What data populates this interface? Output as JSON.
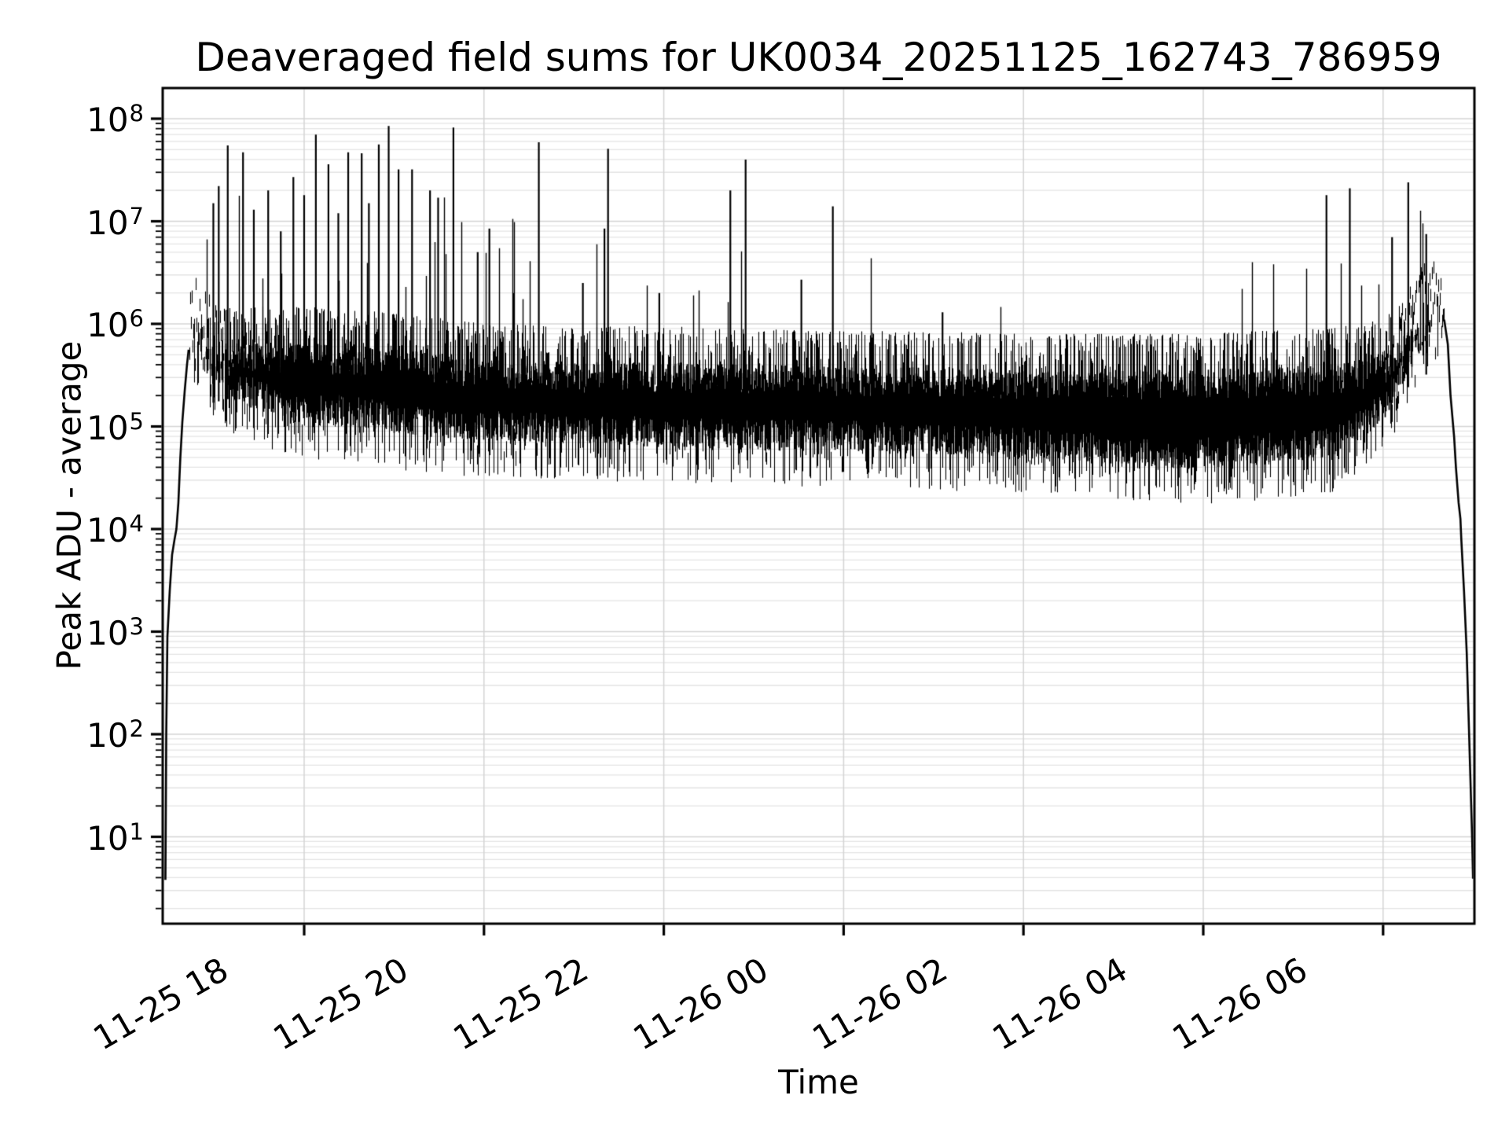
{
  "figure": {
    "title": "Deaveraged field sums for UK0034_20251125_162743_786959",
    "xlabel": "Time",
    "ylabel": "Peak ADU - average"
  },
  "style": {
    "background": "#ffffff",
    "text_color": "#000000",
    "line_color": "#000000",
    "spine_color": "#000000",
    "grid_major_color": "#d4d4d4",
    "grid_minor_color": "#e4e4e4"
  },
  "chart_data": {
    "type": "line",
    "title": "Deaveraged field sums for UK0034_20251125_162743_786959",
    "xlabel": "Time",
    "ylabel": "Peak ADU - average",
    "grid": "both major and minor, light gray, log-y minors shown",
    "legend": "none",
    "x_axis": {
      "scale": "time",
      "tick_labels": [
        "11-25 18",
        "11-25 20",
        "11-25 22",
        "11-26 00",
        "11-26 02",
        "11-26 04",
        "11-26 06"
      ],
      "tick_hours": [
        18,
        20,
        22,
        24,
        26,
        28,
        30
      ],
      "range_hours": [
        16.43,
        31.02
      ],
      "note": "hours counted from 11-25 00:00; values >= 24 fall on 11-26"
    },
    "y_axis": {
      "scale": "log",
      "tick_values": [
        100000000.0,
        10000000.0,
        1000000.0,
        100000.0,
        10000.0,
        1000.0,
        100.0,
        10.0
      ],
      "tick_exponents": [
        8,
        7,
        6,
        5,
        4,
        3,
        2,
        1
      ],
      "range": [
        1.42,
        200000000.0
      ]
    },
    "series": [
      {
        "name": "peak-adu-average",
        "color": "#000000",
        "description": "dense noisy log-scale trace: band of exposures with large spikes; ramp up at start (16:28) and smooth falloff at end (~06:55)",
        "band_keyframes": [
          [
            16.72,
            320000.0,
            1100000.0
          ],
          [
            16.9,
            150000.0,
            1300000.0
          ],
          [
            17.2,
            80000.0,
            1500000.0
          ],
          [
            17.8,
            50000.0,
            1500000.0
          ],
          [
            18.5,
            45000.0,
            1400000.0
          ],
          [
            19.3,
            35000.0,
            1200000.0
          ],
          [
            20.0,
            32000.0,
            1000000.0
          ],
          [
            21.0,
            30000.0,
            950000.0
          ],
          [
            22.0,
            28000.0,
            950000.0
          ],
          [
            23.0,
            26000.0,
            900000.0
          ],
          [
            24.0,
            26000.0,
            850000.0
          ],
          [
            25.0,
            24000.0,
            850000.0
          ],
          [
            26.0,
            22000.0,
            800000.0
          ],
          [
            27.0,
            19000.0,
            800000.0
          ],
          [
            27.8,
            17000.0,
            800000.0
          ],
          [
            28.6,
            19000.0,
            850000.0
          ],
          [
            29.4,
            22000.0,
            900000.0
          ],
          [
            30.0,
            50000.0,
            1100000.0
          ],
          [
            30.3,
            160000.0,
            2000000.0
          ],
          [
            30.55,
            400000.0,
            2800000.0
          ],
          [
            30.68,
            500000.0,
            1200000.0
          ]
        ],
        "spikes": [
          [
            16.99,
            15000000.0
          ],
          [
            17.05,
            22000000.0
          ],
          [
            17.15,
            55000000.0
          ],
          [
            17.32,
            47000000.0
          ],
          [
            17.44,
            13000000.0
          ],
          [
            17.6,
            20000000.0
          ],
          [
            17.74,
            8000000.0
          ],
          [
            17.88,
            27000000.0
          ],
          [
            18.0,
            18000000.0
          ],
          [
            18.13,
            70000000.0
          ],
          [
            18.27,
            36000000.0
          ],
          [
            18.38,
            12000000.0
          ],
          [
            18.49,
            47000000.0
          ],
          [
            18.64,
            46000000.0
          ],
          [
            18.72,
            15000000.0
          ],
          [
            18.83,
            56000000.0
          ],
          [
            18.94,
            85000000.0
          ],
          [
            19.05,
            32000000.0
          ],
          [
            19.2,
            32000000.0
          ],
          [
            19.4,
            20000000.0
          ],
          [
            19.49,
            17000000.0
          ],
          [
            19.66,
            82000000.0
          ],
          [
            19.93,
            5000000.0
          ],
          [
            20.06,
            8500000.0
          ],
          [
            20.33,
            2000000.0
          ],
          [
            20.61,
            59000000.0
          ],
          [
            21.1,
            2500000.0
          ],
          [
            21.34,
            8500000.0
          ],
          [
            21.38,
            51000000.0
          ],
          [
            21.95,
            2000000.0
          ],
          [
            22.74,
            20000000.0
          ],
          [
            22.91,
            40000000.0
          ],
          [
            23.53,
            2700000.0
          ],
          [
            23.88,
            14000000.0
          ],
          [
            25.1,
            1300000.0
          ],
          [
            29.37,
            18000000.0
          ],
          [
            29.63,
            21000000.0
          ],
          [
            30.1,
            7000000.0
          ],
          [
            30.28,
            24000000.0
          ],
          [
            30.48,
            7500000.0
          ]
        ],
        "start_ramp": [
          [
            16.457,
            3.8
          ],
          [
            16.466,
            100
          ],
          [
            16.479,
            890
          ],
          [
            16.505,
            2500
          ],
          [
            16.531,
            5600
          ],
          [
            16.558,
            7900
          ],
          [
            16.579,
            10000.0
          ],
          [
            16.601,
            18000.0
          ],
          [
            16.623,
            50000.0
          ],
          [
            16.645,
            110000.0
          ],
          [
            16.671,
            220000.0
          ],
          [
            16.697,
            400000.0
          ],
          [
            16.715,
            560000.0
          ]
        ],
        "end_falloff": [
          [
            30.68,
            1100000.0
          ],
          [
            30.72,
            630000.0
          ],
          [
            30.75,
            200000.0
          ],
          [
            30.79,
            79000.0
          ],
          [
            30.81,
            40000.0
          ],
          [
            30.84,
            18000.0
          ],
          [
            30.86,
            12600.0
          ],
          [
            30.87,
            7900
          ],
          [
            30.9,
            2500
          ],
          [
            30.93,
            630
          ],
          [
            30.95,
            160
          ],
          [
            30.97,
            40
          ],
          [
            30.99,
            10
          ],
          [
            31.0,
            4
          ],
          [
            31.01,
            4
          ]
        ]
      }
    ]
  }
}
